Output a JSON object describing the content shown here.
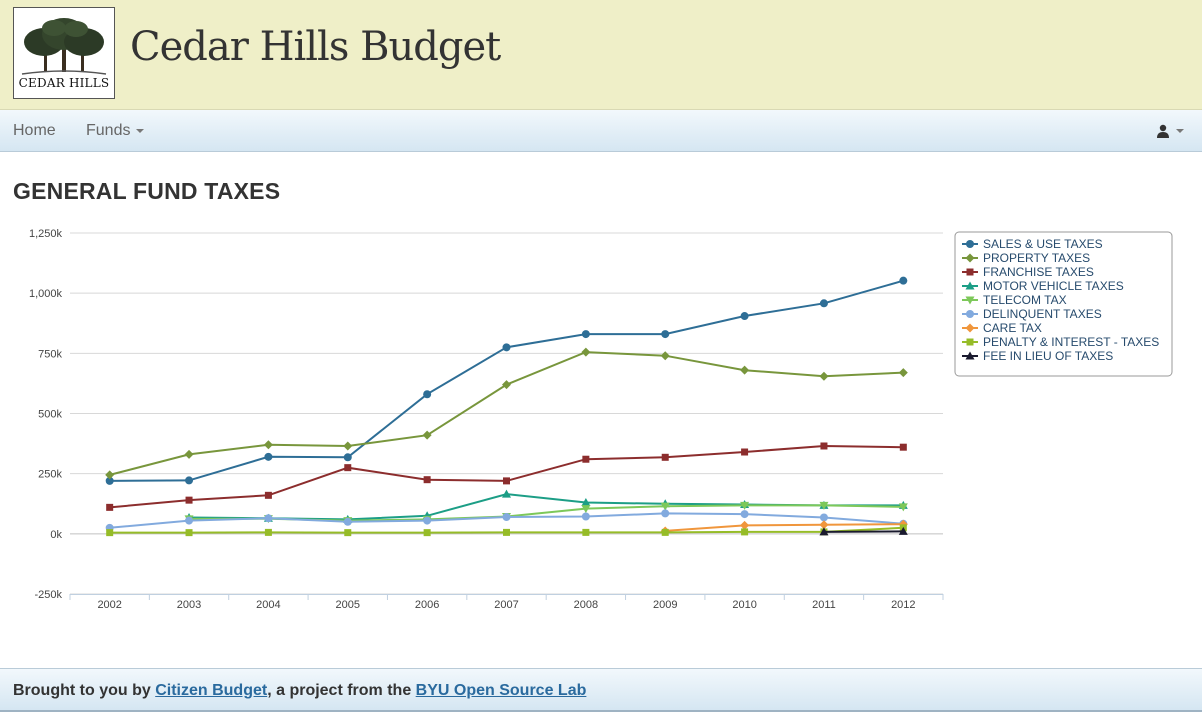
{
  "header": {
    "logo_text": "CEDAR HILLS",
    "title": "Cedar Hills Budget"
  },
  "nav": {
    "home": "Home",
    "funds": "Funds"
  },
  "page": {
    "title": "GENERAL FUND TAXES"
  },
  "footer": {
    "prefix": "Brought to you by ",
    "link1": "Citizen Budget",
    "middle": ", a project from the ",
    "link2": "BYU Open Source Lab"
  },
  "chart_data": {
    "type": "line",
    "title": "",
    "xlabel": "",
    "ylabel": "",
    "x": [
      "2002",
      "2003",
      "2004",
      "2005",
      "2006",
      "2007",
      "2008",
      "2009",
      "2010",
      "2011",
      "2012"
    ],
    "ylim": [
      -250000,
      1250000
    ],
    "yticks": [
      -250000,
      0,
      250000,
      500000,
      750000,
      1000000,
      1250000
    ],
    "ytick_labels": [
      "-250k",
      "0k",
      "250k",
      "500k",
      "750k",
      "1,000k",
      "1,250k"
    ],
    "grid": true,
    "legend_position": "top-right",
    "series": [
      {
        "name": "SALES & USE TAXES",
        "color": "#2e6e96",
        "marker": "circle",
        "values": [
          220000,
          222000,
          320000,
          318000,
          580000,
          775000,
          830000,
          830000,
          905000,
          958000,
          1052000
        ]
      },
      {
        "name": "PROPERTY TAXES",
        "color": "#78963c",
        "marker": "diamond",
        "values": [
          245000,
          330000,
          370000,
          365000,
          410000,
          620000,
          755000,
          740000,
          680000,
          655000,
          670000
        ]
      },
      {
        "name": "FRANCHISE TAXES",
        "color": "#8c2d2d",
        "marker": "square",
        "values": [
          110000,
          140000,
          160000,
          275000,
          225000,
          220000,
          310000,
          318000,
          340000,
          365000,
          360000
        ]
      },
      {
        "name": "MOTOR VEHICLE TAXES",
        "color": "#1c9e86",
        "marker": "triangle",
        "values": [
          null,
          68000,
          65000,
          60000,
          75000,
          165000,
          130000,
          125000,
          122000,
          118000,
          118000
        ]
      },
      {
        "name": "TELECOM TAX",
        "color": "#7dc85a",
        "marker": "triangle-down",
        "values": [
          null,
          62000,
          63000,
          55000,
          60000,
          72000,
          105000,
          115000,
          118000,
          118000,
          112000
        ]
      },
      {
        "name": "DELINQUENT TAXES",
        "color": "#82aade",
        "marker": "circle",
        "values": [
          25000,
          55000,
          65000,
          50000,
          55000,
          70000,
          72000,
          85000,
          82000,
          68000,
          42000
        ]
      },
      {
        "name": "CARE TAX",
        "color": "#f0963c",
        "marker": "diamond",
        "values": [
          null,
          null,
          null,
          null,
          null,
          null,
          null,
          12000,
          35000,
          38000,
          40000
        ]
      },
      {
        "name": "PENALTY & INTEREST - TAXES",
        "color": "#96bc28",
        "marker": "square",
        "values": [
          5000,
          5000,
          6000,
          5000,
          5000,
          6000,
          6000,
          6000,
          8000,
          8000,
          25000
        ]
      },
      {
        "name": "FEE IN LIEU OF TAXES",
        "color": "#1a1a2e",
        "marker": "triangle",
        "values": [
          null,
          null,
          null,
          null,
          null,
          null,
          null,
          null,
          null,
          8000,
          10000
        ]
      }
    ]
  }
}
